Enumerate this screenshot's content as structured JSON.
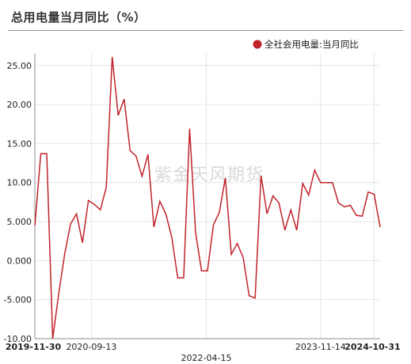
{
  "title": "总用电量当月同比（%）",
  "watermark": "紫金天风期货",
  "colors": {
    "line": "#c1232b",
    "grid": "#e6e6e6",
    "axis": "#8c8c8c"
  },
  "chart_data": {
    "type": "line",
    "title": "总用电量当月同比（%）",
    "ylim": [
      -10,
      26.5
    ],
    "yticks": [
      -10,
      -5,
      0,
      5,
      10,
      15,
      20,
      25
    ],
    "ytick_labels": [
      "-10.00",
      "-5.000",
      "0.000",
      "5.000",
      "10.00",
      "15.00",
      "20.00",
      "25.00"
    ],
    "xtick_labels": [
      {
        "label": "2019-11-30",
        "bold": true,
        "index": 0
      },
      {
        "label": "2020-09-13",
        "bold": false,
        "index": 9.5
      },
      {
        "label": "2022-04-15",
        "bold": false,
        "index": 28.8
      },
      {
        "label": "2023-11-14",
        "bold": false,
        "index": 48
      },
      {
        "label": "2024-10-31",
        "bold": true,
        "index": 57
      }
    ],
    "grid": true,
    "legend_position": "top-right",
    "series": [
      {
        "name": "全社会用电量:当月同比",
        "values": [
          4.5,
          13.7,
          13.7,
          -10.0,
          -4.3,
          0.8,
          4.7,
          6.0,
          2.3,
          7.7,
          7.2,
          6.5,
          9.4,
          26.1,
          18.6,
          20.7,
          14.1,
          13.4,
          10.8,
          13.6,
          4.3,
          7.6,
          6.0,
          3.0,
          -2.2,
          -2.2,
          16.9,
          3.6,
          -1.3,
          -1.3,
          4.6,
          6.2,
          10.6,
          0.8,
          2.2,
          0.4,
          -4.5,
          -4.8,
          10.9,
          6.0,
          8.3,
          7.4,
          3.9,
          6.5,
          3.9,
          9.9,
          8.4,
          11.6,
          10.0,
          10.0,
          10.0,
          7.4,
          6.9,
          7.1,
          5.8,
          5.7,
          8.8,
          8.5,
          4.3
        ]
      }
    ]
  }
}
